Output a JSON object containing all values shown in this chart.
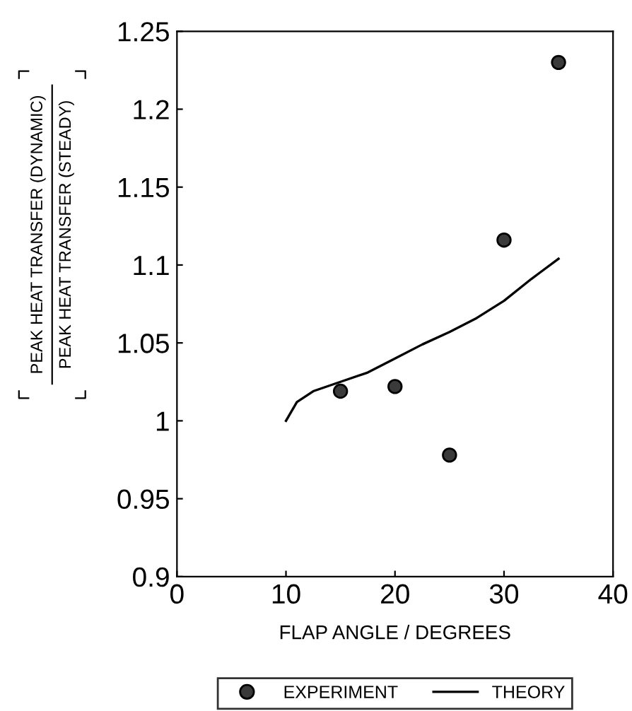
{
  "chart_data": {
    "type": "scatter",
    "xlabel": "FLAP ANGLE / DEGREES",
    "ylabel": "PEAK HEAT TRANSFER (DYNAMIC)\nPEAK HEAT TRANSFER (STEADY)",
    "xlim": [
      0,
      40
    ],
    "xticks": [
      0,
      10,
      20,
      30,
      40
    ],
    "ylim": [
      0.9,
      1.25
    ],
    "yticks": [
      0.9,
      0.95,
      1,
      1.05,
      1.1,
      1.15,
      1.2,
      1.25
    ],
    "grid": false,
    "legend": "bottom",
    "series": [
      {
        "name": "EXPERIMENT",
        "marker": "circle",
        "color": "#3a3a3a",
        "x": [
          15,
          20,
          25,
          30,
          35
        ],
        "values": [
          1.019,
          1.022,
          0.978,
          1.116,
          1.23
        ]
      },
      {
        "name": "THEORY",
        "type": "line",
        "line_style": "solid",
        "color": "#000000",
        "x": [
          10,
          11,
          12.5,
          15,
          17.5,
          20,
          22.5,
          25,
          27.5,
          30,
          32.5,
          35
        ],
        "values": [
          1.0,
          1.012,
          1.019,
          1.025,
          1.031,
          1.04,
          1.049,
          1.057,
          1.066,
          1.077,
          1.091,
          1.104
        ]
      }
    ]
  }
}
